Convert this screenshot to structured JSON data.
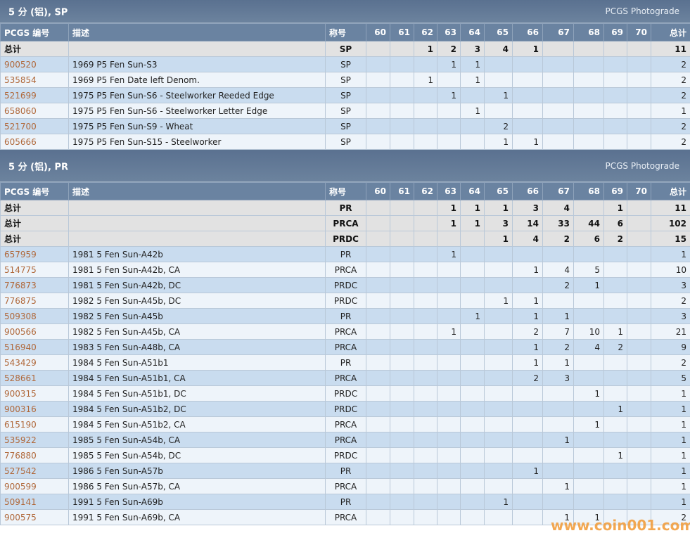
{
  "sections": [
    {
      "title": "5 分 (铝), SP",
      "photograde": "PCGS Photograde",
      "columns": [
        "PCGS 编号",
        "描述",
        "称号",
        "60",
        "61",
        "62",
        "63",
        "64",
        "65",
        "66",
        "67",
        "68",
        "69",
        "70",
        "总计"
      ],
      "rows": [
        [
          "总计",
          null,
          "SP",
          null,
          null,
          1,
          2,
          3,
          4,
          1,
          null,
          null,
          null,
          null,
          11
        ],
        [
          "900520",
          "1969 P5 Fen Sun-S3",
          "SP",
          null,
          null,
          null,
          1,
          1,
          null,
          null,
          null,
          null,
          null,
          null,
          2
        ],
        [
          "535854",
          "1969 P5 Fen Date left Denom.",
          "SP",
          null,
          null,
          1,
          null,
          1,
          null,
          null,
          null,
          null,
          null,
          null,
          2
        ],
        [
          "521699",
          "1975 P5 Fen Sun-S6 - Steelworker Reeded Edge",
          "SP",
          null,
          null,
          null,
          1,
          null,
          1,
          null,
          null,
          null,
          null,
          null,
          2
        ],
        [
          "658060",
          "1975 P5 Fen Sun-S6 - Steelworker Letter Edge",
          "SP",
          null,
          null,
          null,
          null,
          1,
          null,
          null,
          null,
          null,
          null,
          null,
          1
        ],
        [
          "521700",
          "1975 P5 Fen Sun-S9 - Wheat",
          "SP",
          null,
          null,
          null,
          null,
          null,
          2,
          null,
          null,
          null,
          null,
          null,
          2
        ],
        [
          "605666",
          "1975 P5 Fen Sun-S15 - Steelworker",
          "SP",
          null,
          null,
          null,
          null,
          null,
          1,
          1,
          null,
          null,
          null,
          null,
          2
        ]
      ]
    },
    {
      "title": "5 分 (铝), PR",
      "photograde": "PCGS Photograde",
      "columns": [
        "PCGS 编号",
        "描述",
        "称号",
        "60",
        "61",
        "62",
        "63",
        "64",
        "65",
        "66",
        "67",
        "68",
        "69",
        "70",
        "总计"
      ],
      "rows": [
        [
          "总计",
          null,
          "PR",
          null,
          null,
          null,
          1,
          1,
          1,
          3,
          4,
          null,
          1,
          null,
          11
        ],
        [
          "总计",
          null,
          "PRCA",
          null,
          null,
          null,
          1,
          1,
          3,
          14,
          33,
          44,
          6,
          null,
          102
        ],
        [
          "总计",
          null,
          "PRDC",
          null,
          null,
          null,
          null,
          null,
          1,
          4,
          2,
          6,
          2,
          null,
          15
        ],
        [
          "657959",
          "1981 5 Fen Sun-A42b",
          "PR",
          null,
          null,
          null,
          1,
          null,
          null,
          null,
          null,
          null,
          null,
          null,
          1
        ],
        [
          "514775",
          "1981 5 Fen Sun-A42b, CA",
          "PRCA",
          null,
          null,
          null,
          null,
          null,
          null,
          1,
          4,
          5,
          null,
          null,
          10
        ],
        [
          "776873",
          "1981 5 Fen Sun-A42b, DC",
          "PRDC",
          null,
          null,
          null,
          null,
          null,
          null,
          null,
          2,
          1,
          null,
          null,
          3
        ],
        [
          "776875",
          "1982 5 Fen Sun-A45b, DC",
          "PRDC",
          null,
          null,
          null,
          null,
          null,
          1,
          1,
          null,
          null,
          null,
          null,
          2
        ],
        [
          "509308",
          "1982 5 Fen Sun-A45b",
          "PR",
          null,
          null,
          null,
          null,
          1,
          null,
          1,
          1,
          null,
          null,
          null,
          3
        ],
        [
          "900566",
          "1982 5 Fen Sun-A45b, CA",
          "PRCA",
          null,
          null,
          null,
          1,
          null,
          null,
          2,
          7,
          10,
          1,
          null,
          21
        ],
        [
          "516940",
          "1983 5 Fen Sun-A48b, CA",
          "PRCA",
          null,
          null,
          null,
          null,
          null,
          null,
          1,
          2,
          4,
          2,
          null,
          9
        ],
        [
          "543429",
          "1984 5 Fen Sun-A51b1",
          "PR",
          null,
          null,
          null,
          null,
          null,
          null,
          1,
          1,
          null,
          null,
          null,
          2
        ],
        [
          "528661",
          "1984 5 Fen Sun-A51b1, CA",
          "PRCA",
          null,
          null,
          null,
          null,
          null,
          null,
          2,
          3,
          null,
          null,
          null,
          5
        ],
        [
          "900315",
          "1984 5 Fen Sun-A51b1, DC",
          "PRDC",
          null,
          null,
          null,
          null,
          null,
          null,
          null,
          null,
          1,
          null,
          null,
          1
        ],
        [
          "900316",
          "1984 5 Fen Sun-A51b2, DC",
          "PRDC",
          null,
          null,
          null,
          null,
          null,
          null,
          null,
          null,
          null,
          1,
          null,
          1
        ],
        [
          "615190",
          "1984 5 Fen Sun-A51b2, CA",
          "PRCA",
          null,
          null,
          null,
          null,
          null,
          null,
          null,
          null,
          1,
          null,
          null,
          1
        ],
        [
          "535922",
          "1985 5 Fen Sun-A54b, CA",
          "PRCA",
          null,
          null,
          null,
          null,
          null,
          null,
          null,
          1,
          null,
          null,
          null,
          1
        ],
        [
          "776880",
          "1985 5 Fen Sun-A54b, DC",
          "PRDC",
          null,
          null,
          null,
          null,
          null,
          null,
          null,
          null,
          null,
          1,
          null,
          1
        ],
        [
          "527542",
          "1986 5 Fen Sun-A57b",
          "PR",
          null,
          null,
          null,
          null,
          null,
          null,
          1,
          null,
          null,
          null,
          null,
          1
        ],
        [
          "900599",
          "1986 5 Fen Sun-A57b, CA",
          "PRCA",
          null,
          null,
          null,
          null,
          null,
          null,
          null,
          1,
          null,
          null,
          null,
          1
        ],
        [
          "509141",
          "1991 5 Fen Sun-A69b",
          "PR",
          null,
          null,
          null,
          null,
          null,
          1,
          null,
          null,
          null,
          null,
          null,
          1
        ],
        [
          "900575",
          "1991 5 Fen Sun-A69b, CA",
          "PRCA",
          null,
          null,
          null,
          null,
          null,
          null,
          null,
          1,
          1,
          null,
          null,
          2
        ]
      ]
    }
  ],
  "watermark": "www.coin001.com"
}
